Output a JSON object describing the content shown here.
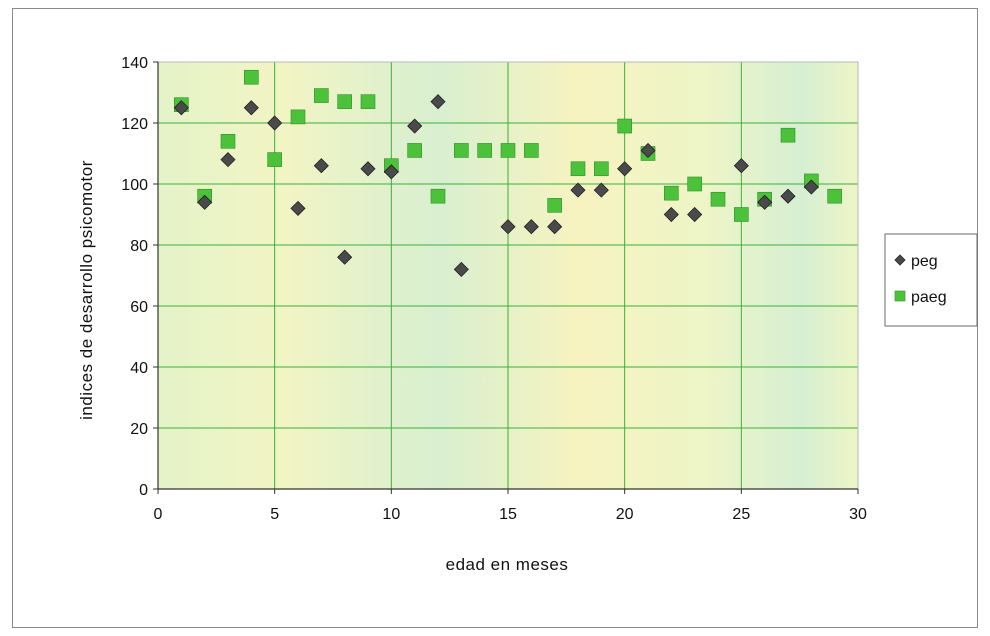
{
  "chart_data": {
    "type": "scatter",
    "title": "",
    "xlabel": "edad en meses",
    "ylabel": "indices de desarrollo psicomotor",
    "xlim": [
      0,
      30
    ],
    "ylim": [
      0,
      140
    ],
    "xticks": [
      0,
      5,
      10,
      15,
      20,
      25,
      30
    ],
    "yticks": [
      0,
      20,
      40,
      60,
      80,
      100,
      120,
      140
    ],
    "grid": "major",
    "legend_position": "right",
    "series": [
      {
        "name": "peg",
        "marker": "diamond",
        "color": "#4a4a4a",
        "points": [
          [
            1,
            125
          ],
          [
            2,
            94
          ],
          [
            3,
            108
          ],
          [
            4,
            125
          ],
          [
            5,
            120
          ],
          [
            6,
            92
          ],
          [
            7,
            106
          ],
          [
            8,
            76
          ],
          [
            9,
            105
          ],
          [
            10,
            104
          ],
          [
            11,
            119
          ],
          [
            12,
            127
          ],
          [
            13,
            72
          ],
          [
            15,
            86
          ],
          [
            16,
            86
          ],
          [
            17,
            86
          ],
          [
            18,
            98
          ],
          [
            19,
            98
          ],
          [
            20,
            105
          ],
          [
            21,
            111
          ],
          [
            22,
            90
          ],
          [
            23,
            90
          ],
          [
            25,
            106
          ],
          [
            26,
            94
          ],
          [
            27,
            96
          ],
          [
            28,
            99
          ]
        ]
      },
      {
        "name": "paeg",
        "marker": "square",
        "color": "#4cc23a",
        "points": [
          [
            1,
            126
          ],
          [
            2,
            96
          ],
          [
            3,
            114
          ],
          [
            4,
            135
          ],
          [
            5,
            108
          ],
          [
            6,
            122
          ],
          [
            7,
            129
          ],
          [
            8,
            127
          ],
          [
            9,
            127
          ],
          [
            10,
            106
          ],
          [
            11,
            111
          ],
          [
            12,
            96
          ],
          [
            13,
            111
          ],
          [
            14,
            111
          ],
          [
            15,
            111
          ],
          [
            16,
            111
          ],
          [
            17,
            93
          ],
          [
            18,
            105
          ],
          [
            19,
            105
          ],
          [
            20,
            119
          ],
          [
            21,
            110
          ],
          [
            22,
            97
          ],
          [
            23,
            100
          ],
          [
            24,
            95
          ],
          [
            25,
            90
          ],
          [
            26,
            95
          ],
          [
            27,
            116
          ],
          [
            28,
            101
          ],
          [
            29,
            96
          ]
        ]
      }
    ]
  }
}
